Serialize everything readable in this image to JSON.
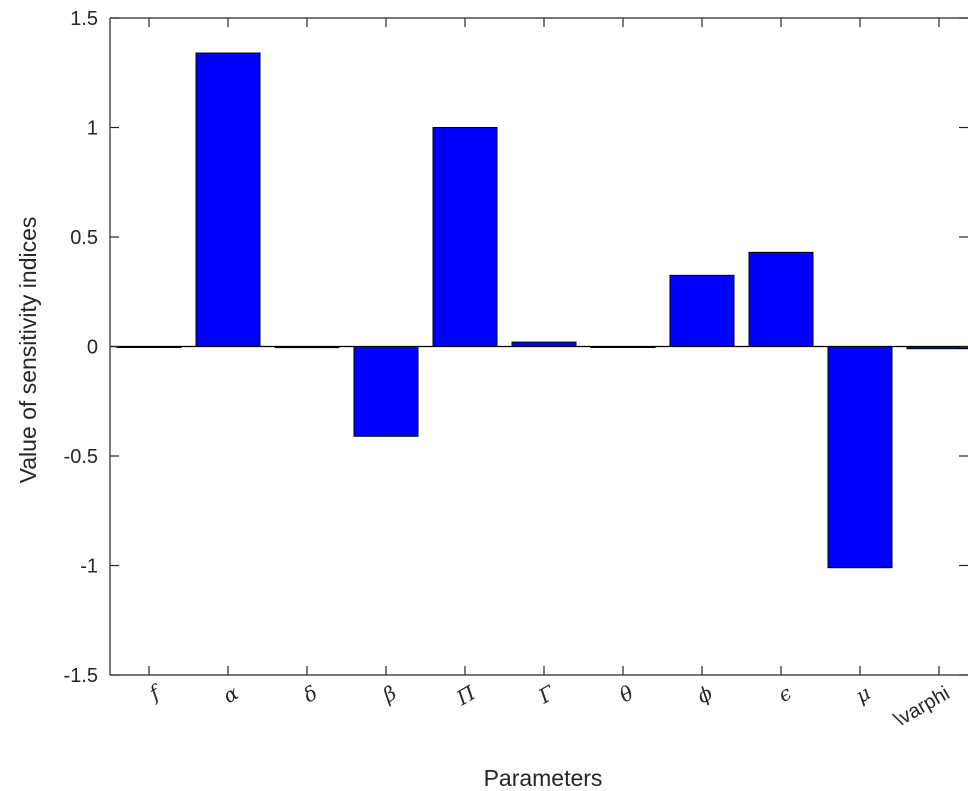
{
  "chart_data": {
    "type": "bar",
    "title": "",
    "xlabel": "Parameters",
    "ylabel": "Value of sensitivity indices",
    "categories": [
      "f",
      "α",
      "δ",
      "β",
      "Π",
      "Γ",
      "θ",
      "ϕ",
      "ϵ",
      "μ",
      "\\varphi"
    ],
    "values": [
      0.0,
      1.34,
      -0.005,
      -0.41,
      1.0,
      0.02,
      0.0,
      0.325,
      0.43,
      -1.01,
      -0.01
    ],
    "ylim": [
      -1.5,
      1.5
    ],
    "yticks": [
      1.5,
      1,
      0.5,
      0,
      -0.5,
      -1,
      -1.5
    ],
    "ytick_labels": [
      "1.5",
      "1",
      "0.5",
      "0",
      "-0.5",
      "-1",
      "-1.5"
    ],
    "bar_color": "#0000ff",
    "grid": false,
    "legend": "none"
  }
}
